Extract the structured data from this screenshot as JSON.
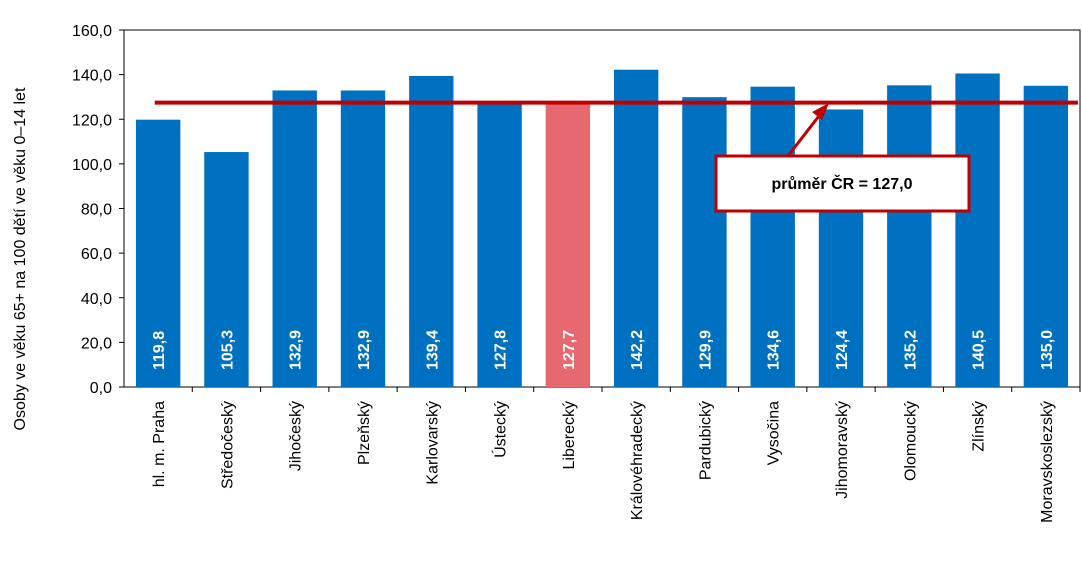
{
  "chart_data": {
    "type": "bar",
    "ylabel": "Osoby ve věku 65+ na 100 dětí ve věku 0–14 let",
    "ylim": [
      0,
      160
    ],
    "yticks": [
      "0,0",
      "20,0",
      "40,0",
      "60,0",
      "80,0",
      "100,0",
      "120,0",
      "140,0",
      "160,0"
    ],
    "categories": [
      "hl. m. Praha",
      "Středočeský",
      "Jihočeský",
      "Plzeňský",
      "Karlovarský",
      "Ústecký",
      "Liberecký",
      "Královéhradecký",
      "Pardubický",
      "Vysočina",
      "Jihomoravský",
      "Olomoucký",
      "Zlínský",
      "Moravskoslezský"
    ],
    "values": [
      119.8,
      105.3,
      132.9,
      132.9,
      139.4,
      127.8,
      127.7,
      142.2,
      129.9,
      134.6,
      124.4,
      135.2,
      140.5,
      135.0
    ],
    "value_labels": [
      "119,8",
      "105,3",
      "132,9",
      "132,9",
      "139,4",
      "127,8",
      "127,7",
      "142,2",
      "129,9",
      "134,6",
      "124,4",
      "135,2",
      "140,5",
      "135,0"
    ],
    "highlight_category": "Liberecký",
    "reference_line": {
      "value": 127.0,
      "label": "průměr ČR = 127,0"
    },
    "grid": false,
    "legend": "none"
  },
  "colors": {
    "bar": "#0070c0",
    "highlight_bar": "#e8686f",
    "reference_line": "#c00000",
    "annotation_border": "#c00000"
  }
}
